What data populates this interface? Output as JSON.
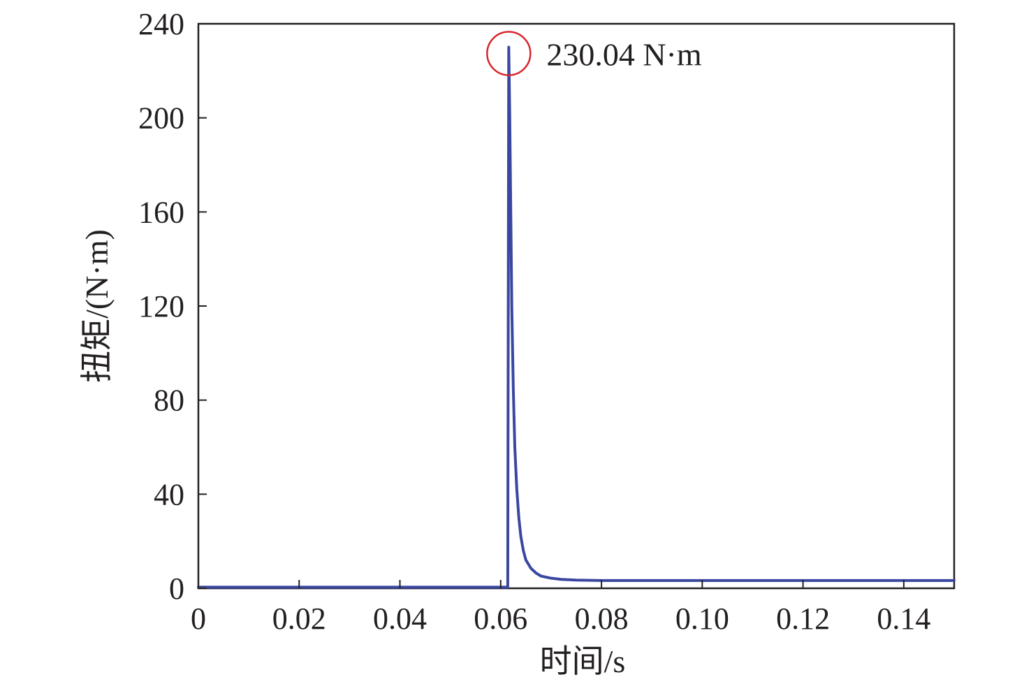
{
  "chart_data": {
    "type": "line",
    "title": "",
    "xlabel": "时间/s",
    "ylabel": "扭矩/(N·m)",
    "xlim": [
      0,
      0.15
    ],
    "ylim": [
      0,
      240
    ],
    "xticks": [
      0,
      0.02,
      0.04,
      0.06,
      0.08,
      0.1,
      0.12,
      0.14
    ],
    "xtick_labels": [
      "0",
      "0.02",
      "0.04",
      "0.06",
      "0.08",
      "0.10",
      "0.12",
      "0.14"
    ],
    "yticks": [
      0,
      40,
      80,
      120,
      160,
      200,
      240
    ],
    "ytick_labels": [
      "0",
      "40",
      "80",
      "120",
      "160",
      "200",
      "240"
    ],
    "grid": false,
    "legend": "none",
    "series": [
      {
        "color": "#3a47a0",
        "x": [
          0,
          0.02,
          0.04,
          0.06,
          0.0614,
          0.0616,
          0.0618,
          0.062,
          0.0622,
          0.0625,
          0.0628,
          0.0632,
          0.0636,
          0.064,
          0.0645,
          0.065,
          0.066,
          0.067,
          0.068,
          0.07,
          0.072,
          0.075,
          0.08,
          0.09,
          0.1,
          0.12,
          0.14,
          0.15
        ],
        "y": [
          0.5,
          0.5,
          0.5,
          0.5,
          0.5,
          230.04,
          200,
          160,
          120,
          85,
          60,
          42,
          30,
          22,
          16,
          12,
          8.5,
          6.5,
          5.2,
          4.3,
          3.8,
          3.5,
          3.3,
          3.3,
          3.3,
          3.3,
          3.3,
          3.3
        ]
      }
    ],
    "annotations": [
      {
        "label": "230.04 N·m",
        "x": 0.0616,
        "y": 230.04,
        "marker": "circle",
        "marker_color": "#d7262d"
      }
    ]
  }
}
